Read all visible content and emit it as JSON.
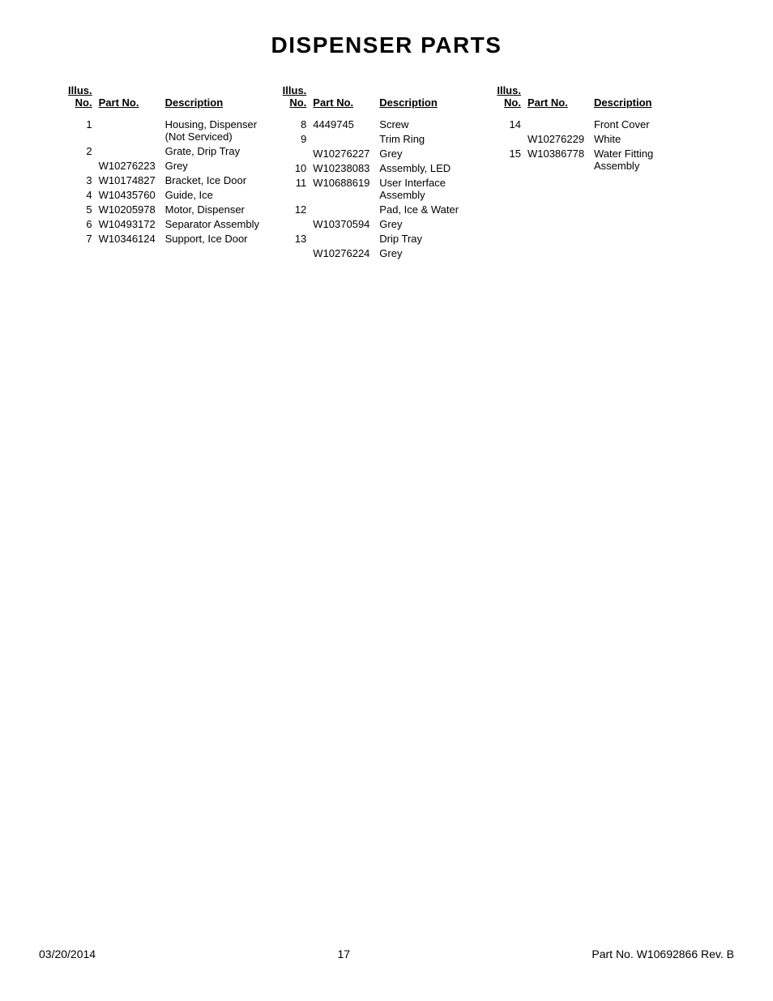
{
  "title": "DISPENSER PARTS",
  "headers": {
    "illus1": "Illus.",
    "illus2": "No.",
    "part": "Part No.",
    "desc": "Description"
  },
  "columns": [
    {
      "rows": [
        {
          "illus": "1",
          "part": "",
          "desc": "Housing, Dispenser (Not Serviced)"
        },
        {
          "illus": "2",
          "part": "",
          "desc": "Grate, Drip Tray"
        },
        {
          "illus": "",
          "part": "W10276223",
          "desc": "Grey"
        },
        {
          "illus": "3",
          "part": "W10174827",
          "desc": "Bracket, Ice Door"
        },
        {
          "illus": "4",
          "part": "W10435760",
          "desc": "Guide, Ice"
        },
        {
          "illus": "5",
          "part": "W10205978",
          "desc": "Motor, Dispenser"
        },
        {
          "illus": "6",
          "part": "W10493172",
          "desc": "Separator Assembly"
        },
        {
          "illus": "7",
          "part": "W10346124",
          "desc": "Support, Ice Door"
        }
      ]
    },
    {
      "rows": [
        {
          "illus": "8",
          "part": "4449745",
          "desc": "Screw"
        },
        {
          "illus": "9",
          "part": "",
          "desc": "Trim Ring"
        },
        {
          "illus": "",
          "part": "W10276227",
          "desc": "Grey"
        },
        {
          "illus": "10",
          "part": "W10238083",
          "desc": "Assembly, LED"
        },
        {
          "illus": "11",
          "part": "W10688619",
          "desc": "User Interface Assembly"
        },
        {
          "illus": "12",
          "part": "",
          "desc": "Pad, Ice & Water"
        },
        {
          "illus": "",
          "part": "W10370594",
          "desc": "Grey"
        },
        {
          "illus": "13",
          "part": "",
          "desc": "Drip Tray"
        },
        {
          "illus": "",
          "part": "W10276224",
          "desc": "Grey"
        }
      ]
    },
    {
      "rows": [
        {
          "illus": "14",
          "part": "",
          "desc": "Front Cover"
        },
        {
          "illus": "",
          "part": "W10276229",
          "desc": "White"
        },
        {
          "illus": "15",
          "part": "W10386778",
          "desc": "Water Fitting Assembly"
        }
      ]
    }
  ],
  "footer": {
    "date": "03/20/2014",
    "page_num": "17",
    "part_info": "Part No. W10692866  Rev.  B"
  }
}
